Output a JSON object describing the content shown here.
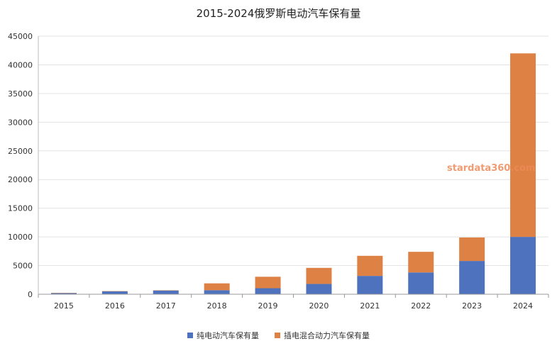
{
  "chart_data": {
    "type": "bar",
    "stacked": true,
    "title": "2015-2024俄罗斯电动汽车保有量",
    "xlabel": "",
    "ylabel": "",
    "categories": [
      "2015",
      "2016",
      "2017",
      "2018",
      "2019",
      "2020",
      "2021",
      "2022",
      "2023",
      "2024"
    ],
    "series": [
      {
        "name": "纯电动汽车保有量",
        "color": "#4e72be",
        "values": [
          200,
          500,
          650,
          700,
          1050,
          1800,
          3200,
          3800,
          5800,
          10000
        ]
      },
      {
        "name": "插电混合动力汽车保有量",
        "color": "#dd8244",
        "values": [
          50,
          50,
          50,
          1200,
          2000,
          2800,
          3500,
          3600,
          4100,
          32000
        ]
      }
    ],
    "ylim": [
      0,
      45000
    ],
    "yticks": [
      0,
      5000,
      10000,
      15000,
      20000,
      25000,
      30000,
      35000,
      40000,
      45000
    ],
    "grid": true,
    "legend_position": "bottom"
  },
  "watermark": "stardata360.com"
}
